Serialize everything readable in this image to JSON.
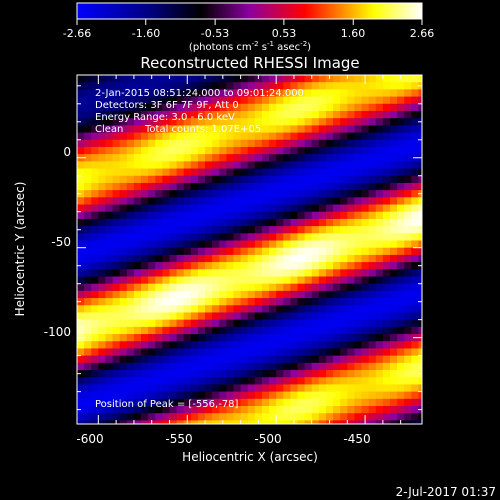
{
  "colorbar": {
    "ticks": [
      "-2.66",
      "-1.60",
      "-0.53",
      "0.53",
      "1.60",
      "2.66"
    ],
    "range": [
      -2.66,
      2.66
    ],
    "units_pre": "(photons cm",
    "units_sup1": "-2",
    "units_mid": " s",
    "units_sup2": "-1",
    "units_mid2": " asec",
    "units_sup3": "-2",
    "units_post": ")"
  },
  "image_overlay": {
    "line1": "2-Jan-2015 08:51:24.000 to 09:01:24.000",
    "line2": "Detectors: 3F 6F 7F 9F, Att 0",
    "line3": "Energy Range: 3.0 - 6.0 keV",
    "line4_method": "Clean",
    "line4_counts": "Total counts: 1.07E+05",
    "peak": "Position of Peak = [-556,-78]"
  },
  "timestamp": "2-Jul-2017 01:37",
  "colors": {
    "cmap": [
      "#0000ff",
      "#00007a",
      "#000000",
      "#8c00a0",
      "#ff0000",
      "#ffff00",
      "#ffffff"
    ]
  },
  "chart_data": {
    "type": "heatmap",
    "title": "Reconstructed RHESSI Image",
    "xlabel": "Heliocentric X (arcsec)",
    "ylabel": "Heliocentric Y (arcsec)",
    "xlim": [
      -612,
      -418
    ],
    "ylim": [
      -148,
      46
    ],
    "x_ticks": [
      -600,
      -550,
      -500,
      -450
    ],
    "y_ticks": [
      0,
      -50,
      -100
    ],
    "peak": [
      -556,
      -78
    ],
    "fringe": {
      "slope": 0.32,
      "period": 84
    }
  }
}
